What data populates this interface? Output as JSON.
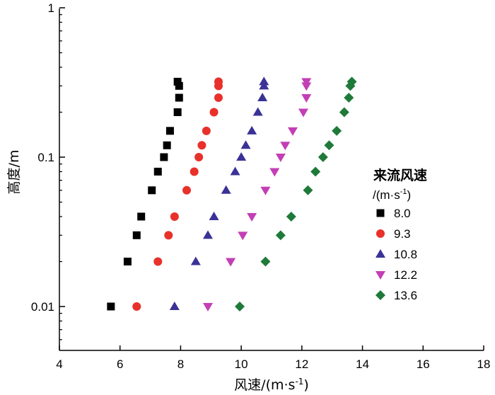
{
  "chart_data": {
    "type": "scatter",
    "xlabel": "风速/(m·s",
    "xlabel_sup": "-1",
    "xlabel_close": ")",
    "ylabel": "高度/m",
    "xlim": [
      4,
      18
    ],
    "ylim": [
      0.005,
      1
    ],
    "y_scale": "log",
    "grid": false,
    "x_ticks": [
      "4",
      "6",
      "8",
      "10",
      "12",
      "14",
      "16",
      "18"
    ],
    "y_ticks": [
      {
        "label": "0.01",
        "value": 0.01
      },
      {
        "label": "0.1",
        "value": 0.1
      },
      {
        "label": "1",
        "value": 1
      }
    ],
    "legend": {
      "title_line1": "来流风速",
      "title_line2": "/(m·s",
      "title_line2_sup": "-1",
      "title_line2_close": ")",
      "placement": "right"
    },
    "series": [
      {
        "name": "8.0",
        "marker": "square",
        "color": "#000000",
        "points": [
          [
            5.7,
            0.01
          ],
          [
            6.25,
            0.02
          ],
          [
            6.55,
            0.03
          ],
          [
            6.7,
            0.04
          ],
          [
            7.05,
            0.06
          ],
          [
            7.25,
            0.08
          ],
          [
            7.45,
            0.1
          ],
          [
            7.55,
            0.12
          ],
          [
            7.65,
            0.15
          ],
          [
            7.9,
            0.2
          ],
          [
            7.95,
            0.25
          ],
          [
            7.95,
            0.3
          ],
          [
            7.9,
            0.32
          ]
        ]
      },
      {
        "name": "9.3",
        "marker": "circle",
        "color": "#e8312a",
        "points": [
          [
            6.55,
            0.01
          ],
          [
            7.25,
            0.02
          ],
          [
            7.6,
            0.03
          ],
          [
            7.8,
            0.04
          ],
          [
            8.2,
            0.06
          ],
          [
            8.45,
            0.08
          ],
          [
            8.6,
            0.1
          ],
          [
            8.7,
            0.12
          ],
          [
            8.85,
            0.15
          ],
          [
            9.1,
            0.2
          ],
          [
            9.25,
            0.25
          ],
          [
            9.25,
            0.3
          ],
          [
            9.25,
            0.32
          ]
        ]
      },
      {
        "name": "10.8",
        "marker": "triangle-up",
        "color": "#3a3296",
        "points": [
          [
            7.8,
            0.01
          ],
          [
            8.5,
            0.02
          ],
          [
            8.9,
            0.03
          ],
          [
            9.1,
            0.04
          ],
          [
            9.5,
            0.06
          ],
          [
            9.8,
            0.08
          ],
          [
            10.0,
            0.1
          ],
          [
            10.15,
            0.12
          ],
          [
            10.35,
            0.15
          ],
          [
            10.55,
            0.2
          ],
          [
            10.7,
            0.25
          ],
          [
            10.75,
            0.3
          ],
          [
            10.75,
            0.32
          ]
        ]
      },
      {
        "name": "12.2",
        "marker": "triangle-down",
        "color": "#c33fb5",
        "points": [
          [
            8.9,
            0.01
          ],
          [
            9.65,
            0.02
          ],
          [
            10.05,
            0.03
          ],
          [
            10.35,
            0.04
          ],
          [
            10.8,
            0.06
          ],
          [
            11.1,
            0.08
          ],
          [
            11.3,
            0.1
          ],
          [
            11.45,
            0.12
          ],
          [
            11.7,
            0.15
          ],
          [
            12.05,
            0.2
          ],
          [
            12.15,
            0.25
          ],
          [
            12.15,
            0.3
          ],
          [
            12.15,
            0.32
          ]
        ]
      },
      {
        "name": "13.6",
        "marker": "diamond",
        "color": "#1f7a3a",
        "points": [
          [
            9.95,
            0.01
          ],
          [
            10.8,
            0.02
          ],
          [
            11.3,
            0.03
          ],
          [
            11.65,
            0.04
          ],
          [
            12.2,
            0.06
          ],
          [
            12.45,
            0.08
          ],
          [
            12.7,
            0.1
          ],
          [
            12.9,
            0.12
          ],
          [
            13.15,
            0.15
          ],
          [
            13.4,
            0.2
          ],
          [
            13.55,
            0.25
          ],
          [
            13.6,
            0.3
          ],
          [
            13.65,
            0.32
          ]
        ]
      }
    ]
  }
}
